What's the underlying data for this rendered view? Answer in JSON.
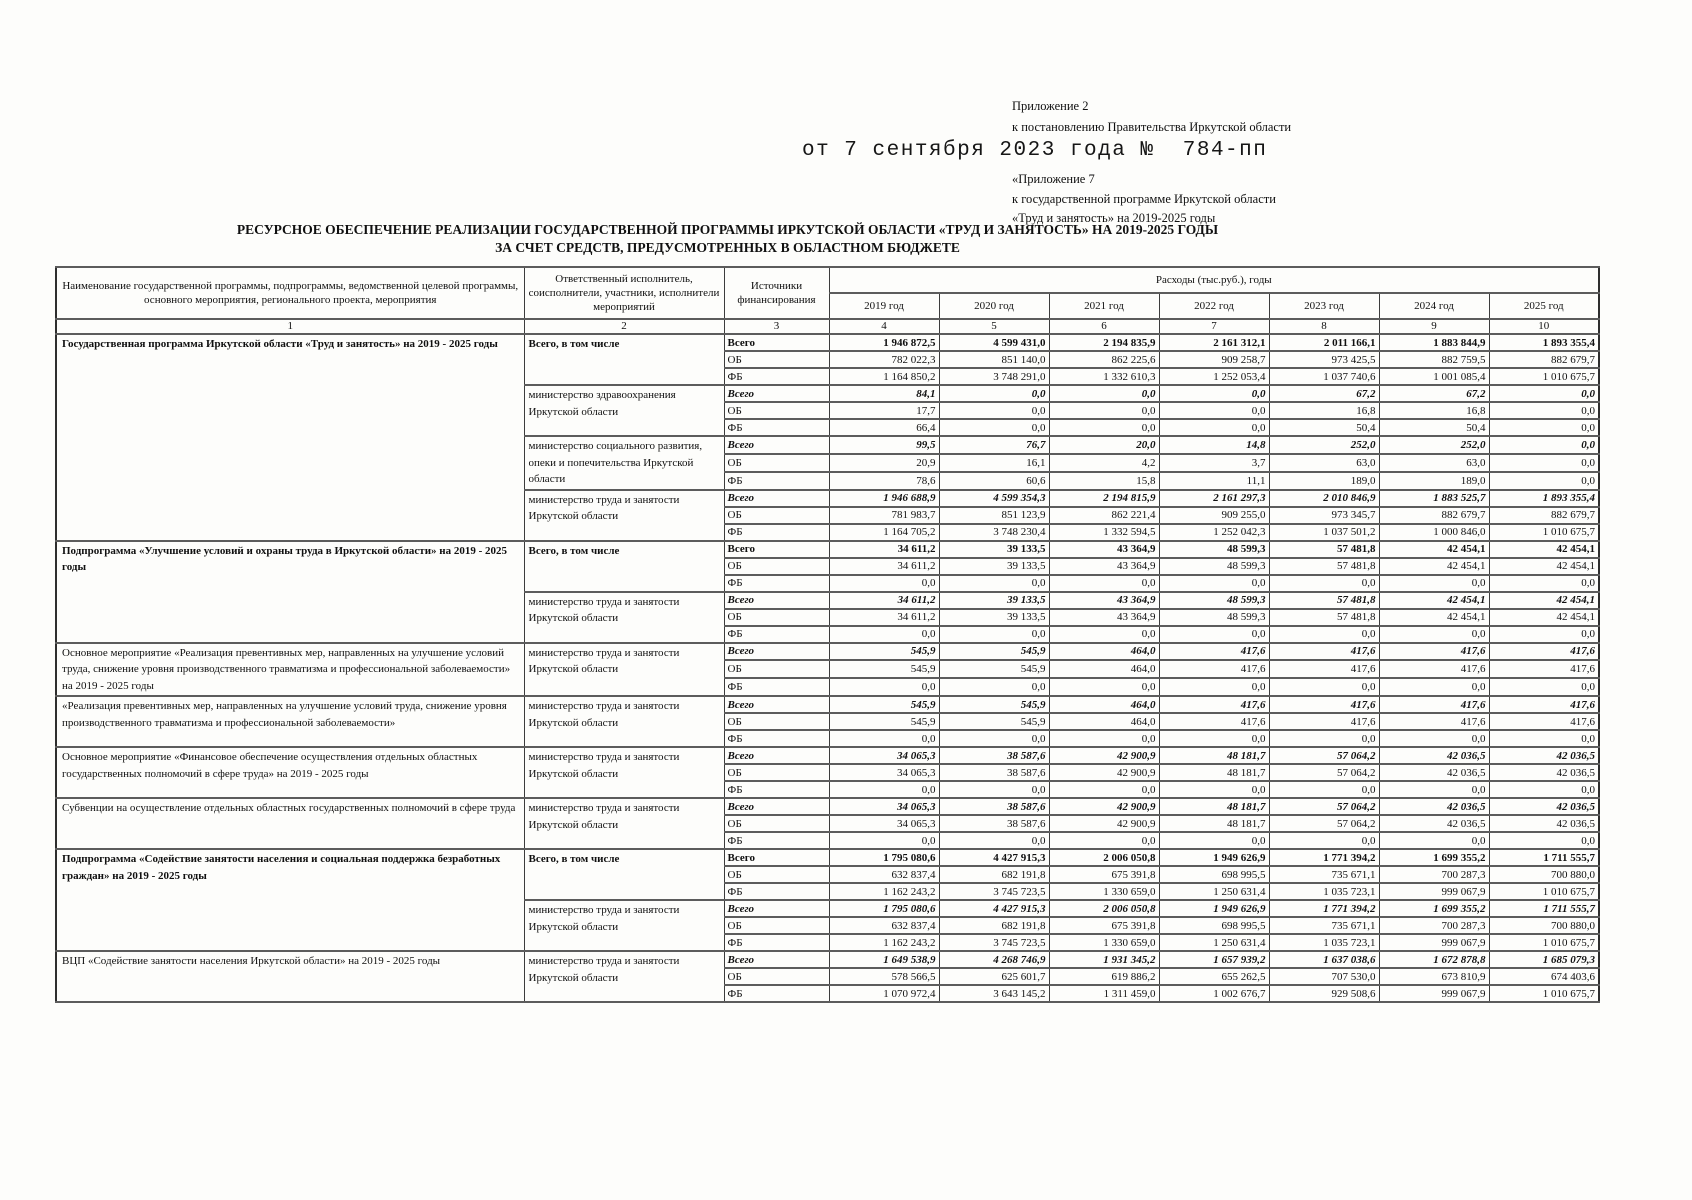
{
  "page": {
    "appendix_top": [
      "Приложение 2",
      "к постановлению Правительства Иркутской области"
    ],
    "decree_line": "от 7 сентября 2023 года №  784-пп",
    "appendix_bottom": [
      "«Приложение 7",
      "к государственной программе Иркутской области",
      "«Труд и занятость» на 2019-2025 годы"
    ],
    "title": [
      "РЕСУРСНОЕ ОБЕСПЕЧЕНИЕ РЕАЛИЗАЦИИ ГОСУДАРСТВЕННОЙ ПРОГРАММЫ ИРКУТСКОЙ ОБЛАСТИ «ТРУД И ЗАНЯТОСТЬ» НА 2019-2025 ГОДЫ",
      "ЗА СЧЕТ СРЕДСТВ, ПРЕДУСМОТРЕННЫХ В ОБЛАСТНОМ БЮДЖЕТЕ"
    ]
  },
  "table": {
    "header": {
      "col_name": "Наименование государственной программы, подпрограммы, ведомственной целевой программы, основного мероприятия, регионального проекта, мероприятия",
      "col_executor": "Ответственный исполнитель, соисполнители, участники, исполнители мероприятий",
      "col_source": "Источники финансирования",
      "expenses": "Расходы (тыс.руб.), годы",
      "years": [
        "2019 год",
        "2020 год",
        "2021 год",
        "2022 год",
        "2023 год",
        "2024 год",
        "2025 год"
      ],
      "numbering": [
        "1",
        "2",
        "3",
        "4",
        "5",
        "6",
        "7",
        "8",
        "9",
        "10"
      ]
    },
    "blocks": [
      {
        "name": "Государственная программа Иркутской области «Труд и занятость» на 2019 - 2025 годы",
        "bold": true,
        "execs": [
          {
            "label": "Всего, в том числе",
            "bold": true,
            "rows": [
              {
                "src": "Всего",
                "style": "b",
                "vals": [
                  "1 946 872,5",
                  "4 599 431,0",
                  "2 194 835,9",
                  "2 161 312,1",
                  "2 011 166,1",
                  "1 883 844,9",
                  "1 893 355,4"
                ]
              },
              {
                "src": "ОБ",
                "style": "",
                "vals": [
                  "782 022,3",
                  "851 140,0",
                  "862 225,6",
                  "909 258,7",
                  "973 425,5",
                  "882 759,5",
                  "882 679,7"
                ]
              },
              {
                "src": "ФБ",
                "style": "",
                "vals": [
                  "1 164 850,2",
                  "3 748 291,0",
                  "1 332 610,3",
                  "1 252 053,4",
                  "1 037 740,6",
                  "1 001 085,4",
                  "1 010 675,7"
                ]
              }
            ]
          },
          {
            "label": "министерство здравоохранения Иркутской области",
            "bold": false,
            "rows": [
              {
                "src": "Всего",
                "style": "bi",
                "vals": [
                  "84,1",
                  "0,0",
                  "0,0",
                  "0,0",
                  "67,2",
                  "67,2",
                  "0,0"
                ]
              },
              {
                "src": "ОБ",
                "style": "",
                "vals": [
                  "17,7",
                  "0,0",
                  "0,0",
                  "0,0",
                  "16,8",
                  "16,8",
                  "0,0"
                ]
              },
              {
                "src": "ФБ",
                "style": "",
                "vals": [
                  "66,4",
                  "0,0",
                  "0,0",
                  "0,0",
                  "50,4",
                  "50,4",
                  "0,0"
                ]
              }
            ]
          },
          {
            "label": "министерство социального развития, опеки и попечительства Иркутской области",
            "bold": false,
            "rows": [
              {
                "src": "Всего",
                "style": "bi",
                "vals": [
                  "99,5",
                  "76,7",
                  "20,0",
                  "14,8",
                  "252,0",
                  "252,0",
                  "0,0"
                ]
              },
              {
                "src": "ОБ",
                "style": "",
                "vals": [
                  "20,9",
                  "16,1",
                  "4,2",
                  "3,7",
                  "63,0",
                  "63,0",
                  "0,0"
                ]
              },
              {
                "src": "ФБ",
                "style": "",
                "vals": [
                  "78,6",
                  "60,6",
                  "15,8",
                  "11,1",
                  "189,0",
                  "189,0",
                  "0,0"
                ]
              }
            ]
          },
          {
            "label": "министерство труда и занятости Иркутской области",
            "bold": false,
            "rows": [
              {
                "src": "Всего",
                "style": "bi",
                "vals": [
                  "1 946 688,9",
                  "4 599 354,3",
                  "2 194 815,9",
                  "2 161 297,3",
                  "2 010 846,9",
                  "1 883 525,7",
                  "1 893 355,4"
                ]
              },
              {
                "src": "ОБ",
                "style": "",
                "vals": [
                  "781 983,7",
                  "851 123,9",
                  "862 221,4",
                  "909 255,0",
                  "973 345,7",
                  "882 679,7",
                  "882 679,7"
                ]
              },
              {
                "src": "ФБ",
                "style": "",
                "vals": [
                  "1 164 705,2",
                  "3 748 230,4",
                  "1 332 594,5",
                  "1 252 042,3",
                  "1 037 501,2",
                  "1 000 846,0",
                  "1 010 675,7"
                ]
              }
            ]
          }
        ]
      },
      {
        "name": "Подпрограмма «Улучшение условий и охраны труда в Иркутской области» на 2019 - 2025 годы",
        "bold": true,
        "execs": [
          {
            "label": "Всего, в том числе",
            "bold": true,
            "rows": [
              {
                "src": "Всего",
                "style": "b",
                "vals": [
                  "34 611,2",
                  "39 133,5",
                  "43 364,9",
                  "48 599,3",
                  "57 481,8",
                  "42 454,1",
                  "42 454,1"
                ]
              },
              {
                "src": "ОБ",
                "style": "",
                "vals": [
                  "34 611,2",
                  "39 133,5",
                  "43 364,9",
                  "48 599,3",
                  "57 481,8",
                  "42 454,1",
                  "42 454,1"
                ]
              },
              {
                "src": "ФБ",
                "style": "",
                "vals": [
                  "0,0",
                  "0,0",
                  "0,0",
                  "0,0",
                  "0,0",
                  "0,0",
                  "0,0"
                ]
              }
            ]
          },
          {
            "label": "министерство труда и занятости Иркутской области",
            "bold": false,
            "rows": [
              {
                "src": "Всего",
                "style": "bi",
                "vals": [
                  "34 611,2",
                  "39 133,5",
                  "43 364,9",
                  "48 599,3",
                  "57 481,8",
                  "42 454,1",
                  "42 454,1"
                ]
              },
              {
                "src": "ОБ",
                "style": "",
                "vals": [
                  "34 611,2",
                  "39 133,5",
                  "43 364,9",
                  "48 599,3",
                  "57 481,8",
                  "42 454,1",
                  "42 454,1"
                ]
              },
              {
                "src": "ФБ",
                "style": "",
                "vals": [
                  "0,0",
                  "0,0",
                  "0,0",
                  "0,0",
                  "0,0",
                  "0,0",
                  "0,0"
                ]
              }
            ]
          }
        ]
      },
      {
        "name": "Основное мероприятие «Реализация превентивных мер, направленных на улучшение условий труда, снижение уровня производственного травматизма и профессиональной заболеваемости» на 2019 - 2025 годы",
        "bold": false,
        "execs": [
          {
            "label": "министерство труда и занятости Иркутской области",
            "bold": false,
            "rows": [
              {
                "src": "Всего",
                "style": "bi",
                "vals": [
                  "545,9",
                  "545,9",
                  "464,0",
                  "417,6",
                  "417,6",
                  "417,6",
                  "417,6"
                ]
              },
              {
                "src": "ОБ",
                "style": "",
                "vals": [
                  "545,9",
                  "545,9",
                  "464,0",
                  "417,6",
                  "417,6",
                  "417,6",
                  "417,6"
                ]
              },
              {
                "src": "ФБ",
                "style": "",
                "vals": [
                  "0,0",
                  "0,0",
                  "0,0",
                  "0,0",
                  "0,0",
                  "0,0",
                  "0,0"
                ]
              }
            ]
          }
        ]
      },
      {
        "name": "«Реализация превентивных мер, направленных на улучшение условий труда, снижение уровня производственного травматизма и профессиональной заболеваемости»",
        "bold": false,
        "execs": [
          {
            "label": "министерство труда и занятости Иркутской области",
            "bold": false,
            "rows": [
              {
                "src": "Всего",
                "style": "bi",
                "vals": [
                  "545,9",
                  "545,9",
                  "464,0",
                  "417,6",
                  "417,6",
                  "417,6",
                  "417,6"
                ]
              },
              {
                "src": "ОБ",
                "style": "",
                "vals": [
                  "545,9",
                  "545,9",
                  "464,0",
                  "417,6",
                  "417,6",
                  "417,6",
                  "417,6"
                ]
              },
              {
                "src": "ФБ",
                "style": "",
                "vals": [
                  "0,0",
                  "0,0",
                  "0,0",
                  "0,0",
                  "0,0",
                  "0,0",
                  "0,0"
                ]
              }
            ]
          }
        ]
      },
      {
        "name": "Основное мероприятие «Финансовое обеспечение осуществления отдельных областных государственных полномочий в сфере труда» на 2019 - 2025 годы",
        "bold": false,
        "execs": [
          {
            "label": "министерство труда и занятости Иркутской области",
            "bold": false,
            "rows": [
              {
                "src": "Всего",
                "style": "bi",
                "vals": [
                  "34 065,3",
                  "38 587,6",
                  "42 900,9",
                  "48 181,7",
                  "57 064,2",
                  "42 036,5",
                  "42 036,5"
                ]
              },
              {
                "src": "ОБ",
                "style": "",
                "vals": [
                  "34 065,3",
                  "38 587,6",
                  "42 900,9",
                  "48 181,7",
                  "57 064,2",
                  "42 036,5",
                  "42 036,5"
                ]
              },
              {
                "src": "ФБ",
                "style": "",
                "vals": [
                  "0,0",
                  "0,0",
                  "0,0",
                  "0,0",
                  "0,0",
                  "0,0",
                  "0,0"
                ]
              }
            ]
          }
        ]
      },
      {
        "name": "Субвенции на осуществление отдельных областных государственных полномочий в сфере труда",
        "bold": false,
        "execs": [
          {
            "label": "министерство труда и занятости Иркутской области",
            "bold": false,
            "rows": [
              {
                "src": "Всего",
                "style": "bi",
                "vals": [
                  "34 065,3",
                  "38 587,6",
                  "42 900,9",
                  "48 181,7",
                  "57 064,2",
                  "42 036,5",
                  "42 036,5"
                ]
              },
              {
                "src": "ОБ",
                "style": "",
                "vals": [
                  "34 065,3",
                  "38 587,6",
                  "42 900,9",
                  "48 181,7",
                  "57 064,2",
                  "42 036,5",
                  "42 036,5"
                ]
              },
              {
                "src": "ФБ",
                "style": "",
                "vals": [
                  "0,0",
                  "0,0",
                  "0,0",
                  "0,0",
                  "0,0",
                  "0,0",
                  "0,0"
                ]
              }
            ]
          }
        ]
      },
      {
        "name": "Подпрограмма «Содействие занятости населения и социальная поддержка безработных граждан» на 2019 - 2025 годы",
        "bold": true,
        "execs": [
          {
            "label": "Всего, в том числе",
            "bold": true,
            "rows": [
              {
                "src": "Всего",
                "style": "b",
                "vals": [
                  "1 795 080,6",
                  "4 427 915,3",
                  "2 006 050,8",
                  "1 949 626,9",
                  "1 771 394,2",
                  "1 699 355,2",
                  "1 711 555,7"
                ]
              },
              {
                "src": "ОБ",
                "style": "",
                "vals": [
                  "632 837,4",
                  "682 191,8",
                  "675 391,8",
                  "698 995,5",
                  "735 671,1",
                  "700 287,3",
                  "700 880,0"
                ]
              },
              {
                "src": "ФБ",
                "style": "",
                "vals": [
                  "1 162 243,2",
                  "3 745 723,5",
                  "1 330 659,0",
                  "1 250 631,4",
                  "1 035 723,1",
                  "999 067,9",
                  "1 010 675,7"
                ]
              }
            ]
          },
          {
            "label": "министерство труда и занятости Иркутской области",
            "bold": false,
            "rows": [
              {
                "src": "Всего",
                "style": "bi",
                "vals": [
                  "1 795 080,6",
                  "4 427 915,3",
                  "2 006 050,8",
                  "1 949 626,9",
                  "1 771 394,2",
                  "1 699 355,2",
                  "1 711 555,7"
                ]
              },
              {
                "src": "ОБ",
                "style": "",
                "vals": [
                  "632 837,4",
                  "682 191,8",
                  "675 391,8",
                  "698 995,5",
                  "735 671,1",
                  "700 287,3",
                  "700 880,0"
                ]
              },
              {
                "src": "ФБ",
                "style": "",
                "vals": [
                  "1 162 243,2",
                  "3 745 723,5",
                  "1 330 659,0",
                  "1 250 631,4",
                  "1 035 723,1",
                  "999 067,9",
                  "1 010 675,7"
                ]
              }
            ]
          }
        ]
      },
      {
        "name": "ВЦП «Содействие занятости населения Иркутской области» на 2019 - 2025 годы",
        "bold": false,
        "execs": [
          {
            "label": "министерство труда и занятости Иркутской области",
            "bold": false,
            "rows": [
              {
                "src": "Всего",
                "style": "bi",
                "vals": [
                  "1 649 538,9",
                  "4 268 746,9",
                  "1 931 345,2",
                  "1 657 939,2",
                  "1 637 038,6",
                  "1 672 878,8",
                  "1 685 079,3"
                ]
              },
              {
                "src": "ОБ",
                "style": "",
                "vals": [
                  "578 566,5",
                  "625 601,7",
                  "619 886,2",
                  "655 262,5",
                  "707 530,0",
                  "673 810,9",
                  "674 403,6"
                ]
              },
              {
                "src": "ФБ",
                "style": "",
                "vals": [
                  "1 070 972,4",
                  "3 643 145,2",
                  "1 311 459,0",
                  "1 002 676,7",
                  "929 508,6",
                  "999 067,9",
                  "1 010 675,7"
                ]
              }
            ]
          }
        ]
      }
    ]
  }
}
